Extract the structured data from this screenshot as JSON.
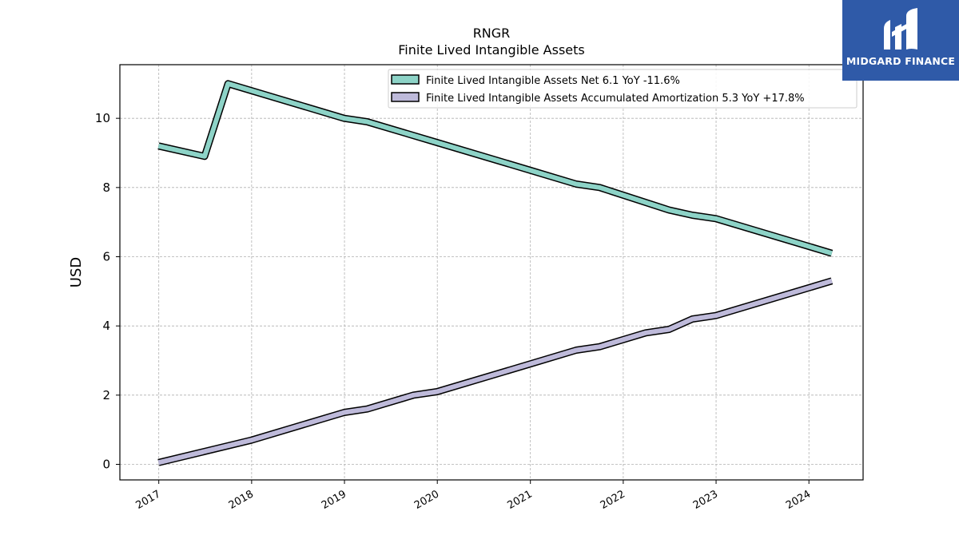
{
  "chart_data": {
    "type": "line",
    "title": "RNGR",
    "subtitle": "Finite Lived Intangible Assets",
    "ylabel": "USD",
    "xlabel": "",
    "ylim": [
      -0.45,
      11.55
    ],
    "xlim": [
      "2016-08-01",
      "2024-08-01"
    ],
    "yticks": [
      0,
      2,
      4,
      6,
      8,
      10
    ],
    "xticks": [
      "2017",
      "2018",
      "2019",
      "2020",
      "2021",
      "2022",
      "2023",
      "2024"
    ],
    "grid": true,
    "legend_position": "top-right",
    "series": [
      {
        "name": "Finite Lived Intangible Assets Net",
        "legend_label": "Finite Lived Intangible Assets Net  6.1 YoY -11.6%",
        "color": "#8dd3c7",
        "x": [
          "2016-12-31",
          "2017-06-30",
          "2017-09-30",
          "2018-12-31",
          "2019-03-31",
          "2019-12-31",
          "2020-12-31",
          "2021-06-30",
          "2021-09-30",
          "2022-06-30",
          "2022-09-30",
          "2022-12-31",
          "2024-03-31"
        ],
        "y": [
          9.2,
          8.9,
          11.0,
          10.0,
          9.9,
          9.3,
          8.5,
          8.1,
          8.0,
          7.35,
          7.2,
          7.1,
          6.1
        ]
      },
      {
        "name": "Finite Lived Intangible Assets Accumulated Amortization",
        "legend_label": "Finite Lived Intangible Assets Accumulated Amortization  5.3 YoY +17.8%",
        "color": "#bebada",
        "x": [
          "2016-12-31",
          "2017-12-31",
          "2018-12-31",
          "2019-03-31",
          "2019-09-30",
          "2019-12-31",
          "2020-12-31",
          "2021-06-30",
          "2021-09-30",
          "2022-03-31",
          "2022-06-30",
          "2022-09-30",
          "2022-12-31",
          "2024-03-31"
        ],
        "y": [
          0.05,
          0.7,
          1.5,
          1.6,
          2.0,
          2.1,
          2.9,
          3.3,
          3.4,
          3.8,
          3.9,
          4.2,
          4.3,
          5.3
        ]
      }
    ]
  },
  "logo": {
    "text": "MIDGARD FINANCE",
    "color": "#2f5aa8"
  }
}
